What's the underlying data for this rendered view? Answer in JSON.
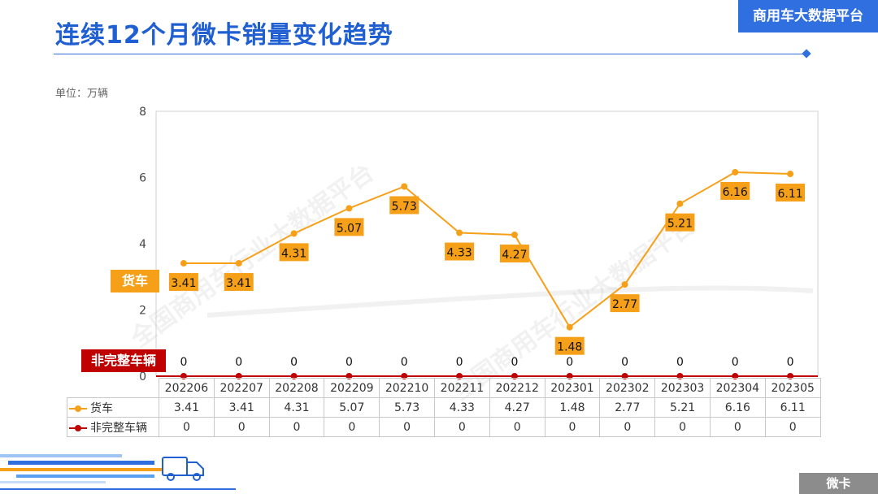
{
  "header": {
    "title": "连续12个月微卡销量变化趋势",
    "brand": "商用车大数据平台"
  },
  "unit_label": "单位：万辆",
  "footer_tag": "微卡",
  "watermark_text": "全国商用车行业大数据平台",
  "colors": {
    "truck": "#f6a01a",
    "incomplete": "#c00000",
    "accent": "#2f6fe0"
  },
  "chart_data": {
    "type": "line",
    "categories": [
      "202206",
      "202207",
      "202208",
      "202209",
      "202210",
      "202211",
      "202212",
      "202301",
      "202302",
      "202303",
      "202304",
      "202305"
    ],
    "series": [
      {
        "name": "货车",
        "values": [
          3.41,
          3.41,
          4.31,
          5.07,
          5.73,
          4.33,
          4.27,
          1.48,
          2.77,
          5.21,
          6.16,
          6.11
        ]
      },
      {
        "name": "非完整车辆",
        "values": [
          0,
          0,
          0,
          0,
          0,
          0,
          0,
          0,
          0,
          0,
          0,
          0
        ]
      }
    ],
    "ylim": [
      0,
      8
    ],
    "yticks": [
      0,
      2,
      4,
      6,
      8
    ],
    "grid": false,
    "data_table": true
  }
}
